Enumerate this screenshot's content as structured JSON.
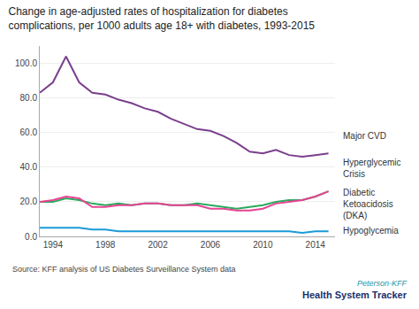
{
  "chart_data": {
    "type": "line",
    "title": "Change in age-adjusted rates of hospitalization for diabetes\ncomplications, per 1000 adults age 18+ with diabetes, 1993-2015",
    "x": [
      1993,
      1994,
      1995,
      1996,
      1997,
      1998,
      1999,
      2000,
      2001,
      2002,
      2003,
      2004,
      2005,
      2006,
      2007,
      2008,
      2009,
      2010,
      2011,
      2012,
      2013,
      2014,
      2015
    ],
    "series": [
      {
        "name": "Major CVD",
        "color": "#7b3f8c",
        "values": [
          83,
          89,
          104,
          89,
          83,
          82,
          79,
          77,
          74,
          72,
          68,
          65,
          62,
          61,
          58,
          54,
          49,
          48,
          50,
          47,
          46,
          47,
          48
        ]
      },
      {
        "name": "Diabetic\nKetoacidosis\n(DKA)",
        "color": "#2aaa5e",
        "values": [
          20,
          20,
          22,
          21,
          19,
          18,
          19,
          18,
          19,
          19,
          18,
          18,
          19,
          18,
          17,
          16,
          17,
          18,
          20,
          21,
          21,
          23,
          26
        ]
      },
      {
        "name": "Hyperglycemic\nCrisis",
        "color": "#e84393",
        "values": [
          20,
          21,
          23,
          22,
          17,
          17,
          18,
          18,
          19,
          19,
          18,
          18,
          18,
          16,
          16,
          15,
          15,
          16,
          19,
          20,
          21,
          23,
          26
        ]
      },
      {
        "name": "Hypoglycemia",
        "color": "#1a9bd7",
        "values": [
          5,
          5,
          5,
          5,
          4,
          4,
          3,
          3,
          3,
          3,
          3,
          3,
          3,
          3,
          3,
          3,
          3,
          3,
          3,
          3,
          2,
          3,
          3
        ]
      }
    ],
    "xlim": [
      1993,
      2015.5
    ],
    "xticks": [
      1994,
      1998,
      2002,
      2006,
      2010,
      2014
    ],
    "ylim": [
      0,
      110
    ],
    "yticks": [
      {
        "value": 0,
        "label": "0.0"
      },
      {
        "value": 20,
        "label": "20.0"
      },
      {
        "value": 40,
        "label": "40.0"
      },
      {
        "value": 60,
        "label": "60.0"
      },
      {
        "value": 80,
        "label": "80.0"
      },
      {
        "value": 100,
        "label": "100.0"
      }
    ],
    "grid": true,
    "annotations": [
      "Source: KFF analysis of US Diabetes Surveillance System data",
      "Peterson-KFF",
      "Health System Tracker"
    ]
  }
}
